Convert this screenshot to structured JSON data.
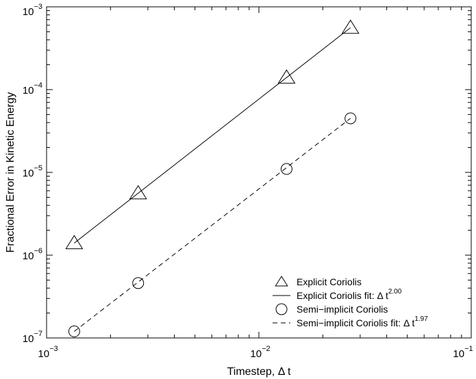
{
  "chart_data": {
    "type": "scatter",
    "xscale": "log",
    "yscale": "log",
    "xlim": [
      0.001,
      0.1
    ],
    "ylim": [
      1e-07,
      0.001
    ],
    "xlabel": "Timestep, Δ t",
    "ylabel": "Fractional Error in Kinetic Energy",
    "grid": false,
    "legend_position": "bottom-right",
    "x_ticks": [
      {
        "value": 0.001,
        "base": "10",
        "exp": "−3"
      },
      {
        "value": 0.01,
        "base": "10",
        "exp": "−2"
      },
      {
        "value": 0.1,
        "base": "10",
        "exp": "−1"
      }
    ],
    "y_ticks": [
      {
        "value": 1e-07,
        "base": "10",
        "exp": "−7"
      },
      {
        "value": 1e-06,
        "base": "10",
        "exp": "−6"
      },
      {
        "value": 1e-05,
        "base": "10",
        "exp": "−5"
      },
      {
        "value": 0.0001,
        "base": "10",
        "exp": "−4"
      },
      {
        "value": 0.001,
        "base": "10",
        "exp": "−3"
      }
    ],
    "series": [
      {
        "name": "Explicit Coriolis",
        "kind": "markers",
        "marker": "triangle",
        "x": [
          0.00135,
          0.0027,
          0.0135,
          0.027
        ],
        "y": [
          1.4e-06,
          5.6e-06,
          0.00014,
          0.00056
        ]
      },
      {
        "name": "Explicit Coriolis fit: Δ t",
        "name_superscript": "2.00",
        "kind": "line",
        "dash": "solid",
        "x": [
          0.00135,
          0.027
        ],
        "y": [
          1.4e-06,
          0.00056
        ]
      },
      {
        "name": "Semi−implicit Coriolis",
        "kind": "markers",
        "marker": "circle",
        "x": [
          0.00135,
          0.0027,
          0.0135,
          0.027
        ],
        "y": [
          1.2e-07,
          4.6e-07,
          1.1e-05,
          4.5e-05
        ]
      },
      {
        "name": "Semi−implicit Coriolis fit: Δ t",
        "name_superscript": "1.97",
        "kind": "line",
        "dash": "dashed",
        "x": [
          0.00135,
          0.027
        ],
        "y": [
          1.2e-07,
          4.5e-05
        ]
      }
    ]
  },
  "colors": {
    "ink": "#000000",
    "background": "#ffffff"
  }
}
